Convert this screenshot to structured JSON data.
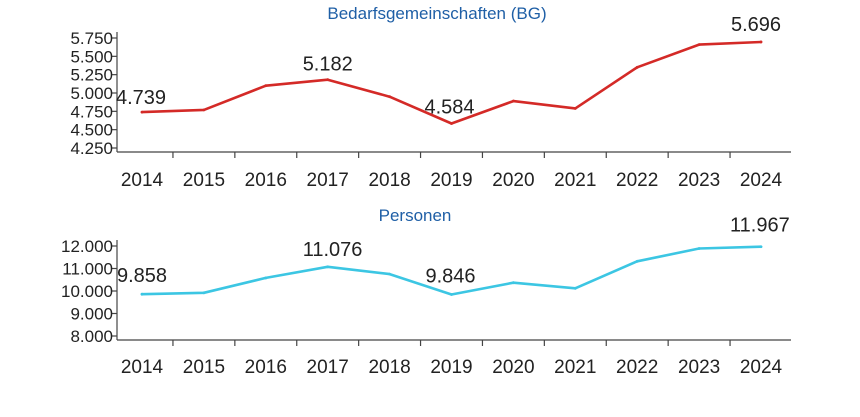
{
  "colors": {
    "bg_series": "#d42a27",
    "personen_series": "#3cc6e3",
    "title": "#1f5fa6"
  },
  "chart_data": [
    {
      "type": "line",
      "title": "Bedarfsgemeinschaften (BG)",
      "xlabel": "",
      "ylabel": "",
      "categories": [
        "2014",
        "2015",
        "2016",
        "2017",
        "2018",
        "2019",
        "2020",
        "2021",
        "2022",
        "2023",
        "2024"
      ],
      "series": [
        {
          "values": [
            4739,
            4770,
            5100,
            5182,
            4950,
            4584,
            4890,
            4790,
            5350,
            5660,
            5696
          ]
        }
      ],
      "ylim": [
        4250,
        5750
      ],
      "yticks": [
        4250,
        4500,
        4750,
        5000,
        5250,
        5500,
        5750
      ],
      "ytick_labels": [
        "4.250",
        "4.500",
        "4.750",
        "5.000",
        "5.250",
        "5.500",
        "5.750"
      ],
      "data_labels": [
        {
          "index": 0,
          "text": "4.739"
        },
        {
          "index": 3,
          "text": "5.182"
        },
        {
          "index": 5,
          "text": "4.584"
        },
        {
          "index": 10,
          "text": "5.696"
        }
      ],
      "grid": false,
      "legend": "none"
    },
    {
      "type": "line",
      "title": "Personen",
      "xlabel": "",
      "ylabel": "",
      "categories": [
        "2014",
        "2015",
        "2016",
        "2017",
        "2018",
        "2019",
        "2020",
        "2021",
        "2022",
        "2023",
        "2024"
      ],
      "series": [
        {
          "values": [
            9858,
            9920,
            10580,
            11076,
            10750,
            9846,
            10370,
            10120,
            11320,
            11890,
            11967
          ]
        }
      ],
      "ylim": [
        8000,
        12000
      ],
      "yticks": [
        8000,
        9000,
        10000,
        11000,
        12000
      ],
      "ytick_labels": [
        "8.000",
        "9.000",
        "10.000",
        "11.000",
        "12.000"
      ],
      "data_labels": [
        {
          "index": 0,
          "text": "9.858"
        },
        {
          "index": 3,
          "text": "11.076"
        },
        {
          "index": 5,
          "text": "9.846"
        },
        {
          "index": 10,
          "text": "11.967"
        }
      ],
      "grid": false,
      "legend": "none"
    }
  ]
}
